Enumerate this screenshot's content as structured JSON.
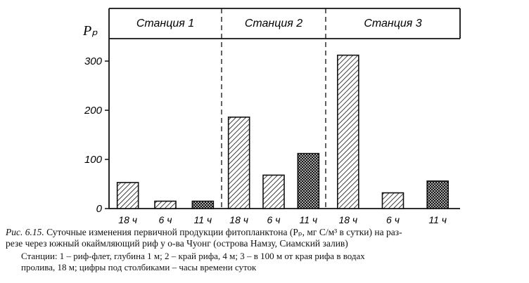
{
  "chart_data": {
    "type": "bar",
    "ylabel": "Pₚ",
    "yticks": [
      0,
      100,
      200,
      300
    ],
    "ylim": [
      0,
      345
    ],
    "stations": [
      {
        "label": "Станция 1",
        "bars": [
          {
            "time": "18 ч",
            "value": 53,
            "pattern": "diag"
          },
          {
            "time": "6 ч",
            "value": 15,
            "pattern": "diag"
          },
          {
            "time": "11 ч",
            "value": 15,
            "pattern": "cross"
          }
        ]
      },
      {
        "label": "Станция 2",
        "bars": [
          {
            "time": "18 ч",
            "value": 186,
            "pattern": "diag"
          },
          {
            "time": "6 ч",
            "value": 68,
            "pattern": "diag"
          },
          {
            "time": "11 ч",
            "value": 112,
            "pattern": "cross"
          }
        ]
      },
      {
        "label": "Станция 3",
        "bars": [
          {
            "time": "18 ч",
            "value": 312,
            "pattern": "diag"
          },
          {
            "time": "6 ч",
            "value": 32,
            "pattern": "diag"
          },
          {
            "time": "11 ч",
            "value": 56,
            "pattern": "cross"
          }
        ]
      }
    ]
  },
  "caption": {
    "fig_label": "Рис. 6.15.",
    "line1": " Суточные изменения первичной продукции фитопланктона (Pₚ, мг С/м³ в сутки) на раз-",
    "line2": "резе через южный окаймляющий риф у о-ва Чуонг (острова Намзу, Сиамский залив)",
    "line3": "Станции: 1 – риф-флет, глубина 1 м; 2 – край рифа, 4 м; 3 – в 100 м от края рифа в водах",
    "line4": "пролива, 18 м; цифры под столбиками – часы времени суток"
  }
}
